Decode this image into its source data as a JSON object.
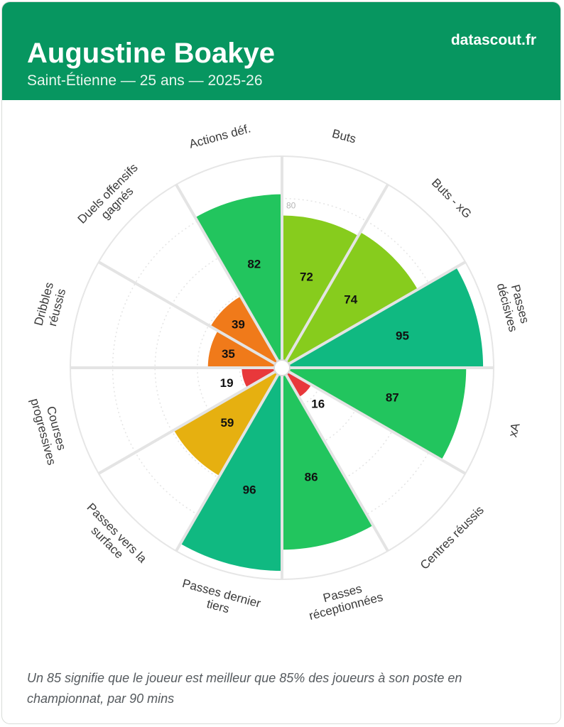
{
  "header": {
    "player_name": "Augustine Boakye",
    "subtitle": "Saint-Étienne — 25 ans — 2025-26",
    "brand": "datascout.fr"
  },
  "footer": {
    "note": "Un 85 signifie que le joueur est meilleur que 85% des joueurs à son poste en championnat, par 90 mins"
  },
  "colors": {
    "header_bg": "#079660",
    "low": "#e8383b",
    "mid_low": "#f07a1a",
    "mid": "#e6b010",
    "high": "#87cc1d",
    "very_high": "#22c55e",
    "elite": "#10b981"
  },
  "chart_data": {
    "type": "pie",
    "subtype": "polar-area",
    "scale_max": 100,
    "ring_label": "80",
    "ring_label_value": 80,
    "rings": [
      20,
      40,
      60,
      80,
      100
    ],
    "categories": [
      {
        "label": [
          "Buts"
        ],
        "value": 72,
        "color": "#87cc1d"
      },
      {
        "label": [
          "Buts - xG"
        ],
        "value": 74,
        "color": "#87cc1d"
      },
      {
        "label": [
          "Passes",
          "décisives"
        ],
        "value": 95,
        "color": "#10b981"
      },
      {
        "label": [
          "xA"
        ],
        "value": 87,
        "color": "#22c55e"
      },
      {
        "label": [
          "Centres réussis"
        ],
        "value": 16,
        "color": "#e8383b"
      },
      {
        "label": [
          "Passes",
          "réceptionnées"
        ],
        "value": 86,
        "color": "#22c55e"
      },
      {
        "label": [
          "Passes dernier",
          "tiers"
        ],
        "value": 96,
        "color": "#10b981"
      },
      {
        "label": [
          "Passes vers la",
          "surface"
        ],
        "value": 59,
        "color": "#e6b010"
      },
      {
        "label": [
          "Courses",
          "progressives"
        ],
        "value": 19,
        "color": "#e8383b"
      },
      {
        "label": [
          "Dribbles",
          "réussis"
        ],
        "value": 35,
        "color": "#f07a1a"
      },
      {
        "label": [
          "Duels offensifs",
          "gagnés"
        ],
        "value": 39,
        "color": "#f07a1a"
      },
      {
        "label": [
          "Actions déf."
        ],
        "value": 82,
        "color": "#22c55e"
      }
    ]
  }
}
